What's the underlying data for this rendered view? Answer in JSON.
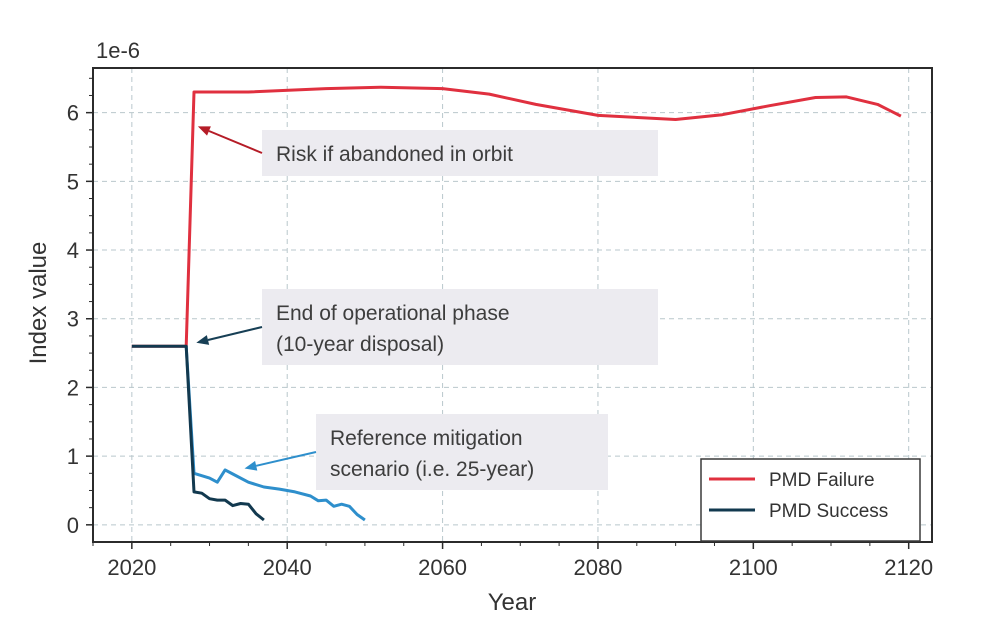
{
  "chart_data": {
    "type": "line",
    "title": "",
    "xlabel": "Year",
    "ylabel": "Index value",
    "y_scale_label": "1e-6",
    "xlim": [
      2015,
      2123
    ],
    "ylim": [
      -0.25,
      6.65
    ],
    "x_ticks": [
      2020,
      2040,
      2060,
      2080,
      2100,
      2120
    ],
    "y_ticks": [
      0,
      1,
      2,
      3,
      4,
      5,
      6
    ],
    "grid": true,
    "legend_position": "bottom-right",
    "series": [
      {
        "name": "PMD Failure",
        "color": "#e0303f",
        "in_legend": true,
        "points": [
          [
            2020,
            2.6
          ],
          [
            2027,
            2.6
          ],
          [
            2028,
            6.3
          ],
          [
            2035,
            6.3
          ],
          [
            2045,
            6.35
          ],
          [
            2052,
            6.37
          ],
          [
            2060,
            6.35
          ],
          [
            2066,
            6.27
          ],
          [
            2072,
            6.12
          ],
          [
            2080,
            5.96
          ],
          [
            2090,
            5.9
          ],
          [
            2096,
            5.97
          ],
          [
            2102,
            6.1
          ],
          [
            2108,
            6.22
          ],
          [
            2112,
            6.23
          ],
          [
            2116,
            6.12
          ],
          [
            2119,
            5.95
          ]
        ]
      },
      {
        "name": "Reference mitigation scenario",
        "color": "#2e8fcc",
        "in_legend": false,
        "points": [
          [
            2027,
            2.6
          ],
          [
            2028,
            0.75
          ],
          [
            2030,
            0.68
          ],
          [
            2031,
            0.62
          ],
          [
            2032,
            0.8
          ],
          [
            2033,
            0.74
          ],
          [
            2035,
            0.62
          ],
          [
            2037,
            0.55
          ],
          [
            2039,
            0.52
          ],
          [
            2041,
            0.48
          ],
          [
            2043,
            0.42
          ],
          [
            2044,
            0.35
          ],
          [
            2045,
            0.36
          ],
          [
            2046,
            0.27
          ],
          [
            2047,
            0.3
          ],
          [
            2048,
            0.27
          ],
          [
            2049,
            0.15
          ],
          [
            2050,
            0.07
          ]
        ]
      },
      {
        "name": "PMD Success",
        "color": "#12394f",
        "in_legend": true,
        "points": [
          [
            2020,
            2.6
          ],
          [
            2027,
            2.6
          ],
          [
            2028,
            0.48
          ],
          [
            2029,
            0.46
          ],
          [
            2030,
            0.38
          ],
          [
            2031,
            0.36
          ],
          [
            2032,
            0.36
          ],
          [
            2033,
            0.28
          ],
          [
            2034,
            0.31
          ],
          [
            2035,
            0.3
          ],
          [
            2036,
            0.16
          ],
          [
            2037,
            0.07
          ]
        ]
      }
    ],
    "annotations": [
      {
        "lines": [
          "Risk if abandoned in orbit"
        ],
        "arrow_to": [
          2028.5,
          5.8
        ],
        "color": "#b51c27"
      },
      {
        "lines": [
          "End of operational phase",
          "(10-year disposal)"
        ],
        "arrow_to": [
          2028.3,
          2.65
        ],
        "color": "#173f55"
      },
      {
        "lines": [
          "Reference mitigation",
          "scenario (i.e. 25-year)"
        ],
        "arrow_to": [
          2034.5,
          0.82
        ],
        "color": "#2e8fcc"
      }
    ]
  }
}
